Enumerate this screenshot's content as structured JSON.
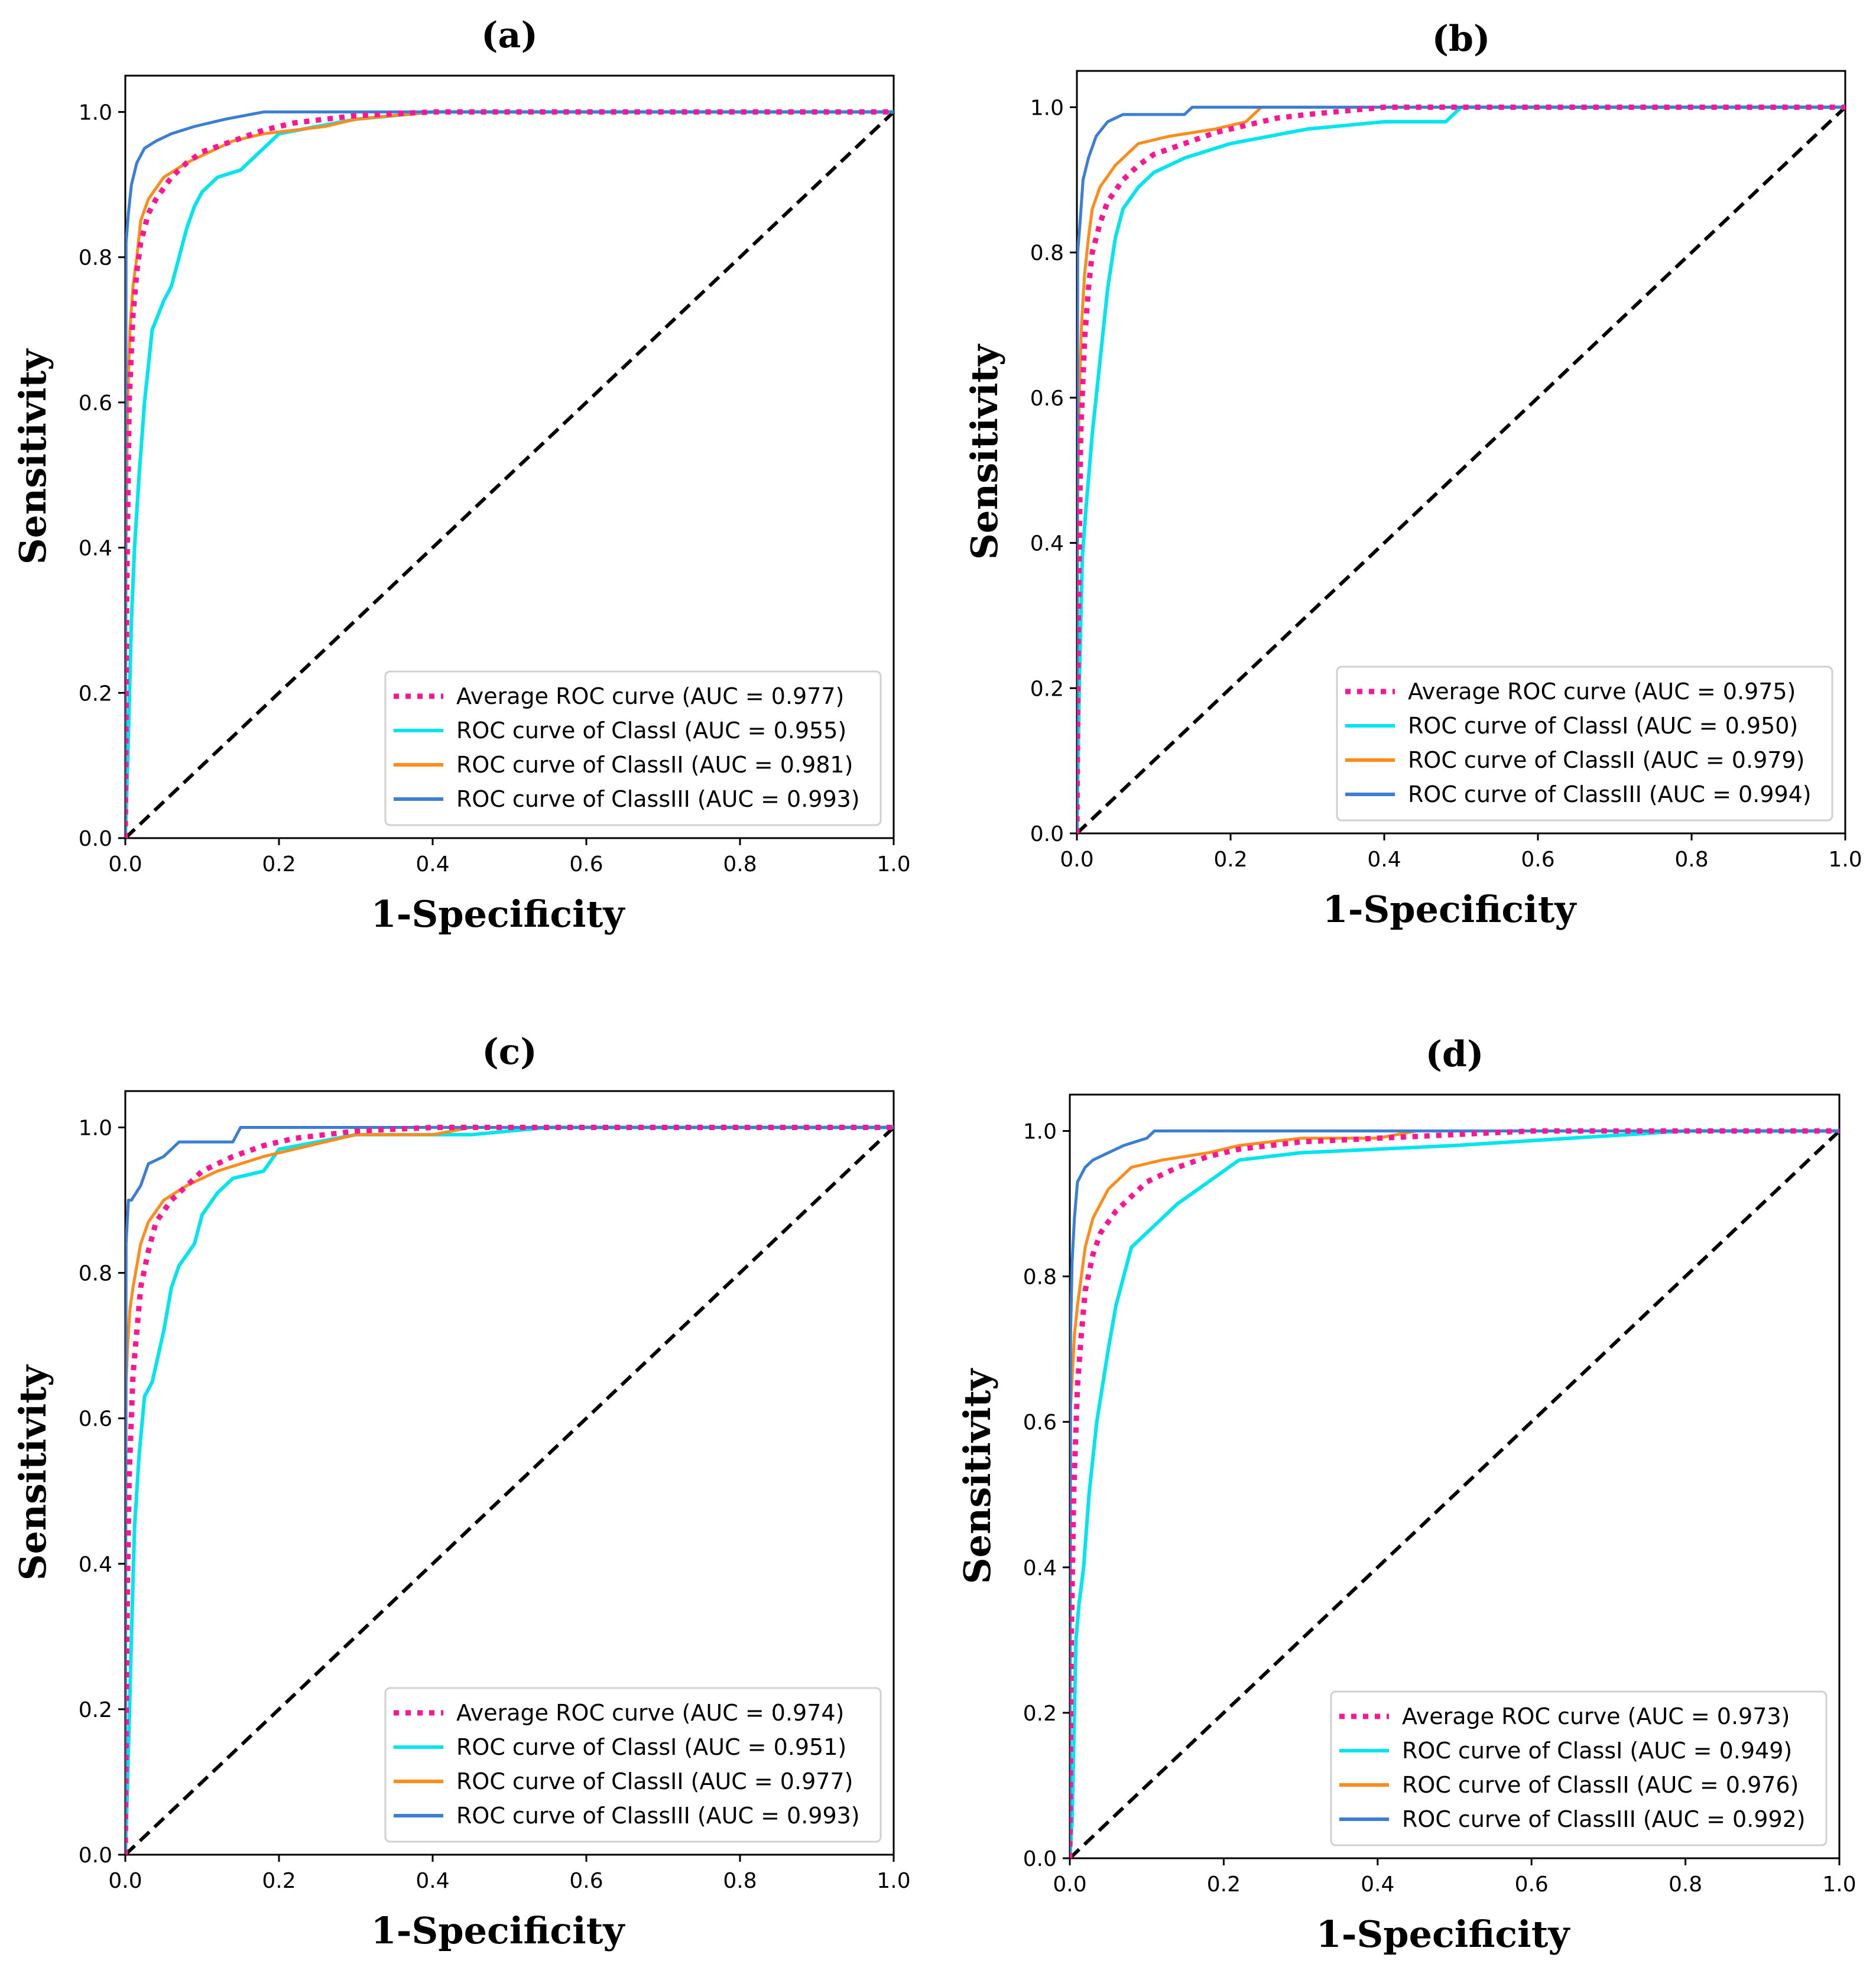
{
  "figure": {
    "panel_count": 4
  },
  "chart_data": [
    {
      "type": "line",
      "title": "(a)",
      "xlabel": "1-Specificity",
      "ylabel": "Sensitivity",
      "xlim": [
        0,
        1
      ],
      "ylim": [
        0,
        1.05
      ],
      "xticks": [
        "0.0",
        "0.2",
        "0.4",
        "0.6",
        "0.8",
        "1.0"
      ],
      "yticks": [
        "0.0",
        "0.2",
        "0.4",
        "0.6",
        "0.8",
        "1.0"
      ],
      "legend_position": "lower-right",
      "series": [
        {
          "name": "Average ROC curve (AUC = 0.977)",
          "color": "#ff1493",
          "style": "dotted",
          "x": [
            0,
            0.002,
            0.005,
            0.01,
            0.015,
            0.02,
            0.03,
            0.04,
            0.06,
            0.08,
            0.1,
            0.14,
            0.18,
            0.22,
            0.26,
            0.3,
            0.4,
            0.6,
            1.0
          ],
          "y": [
            0,
            0.35,
            0.6,
            0.72,
            0.78,
            0.82,
            0.86,
            0.88,
            0.91,
            0.93,
            0.945,
            0.96,
            0.975,
            0.985,
            0.99,
            0.995,
            1.0,
            1.0,
            1.0
          ]
        },
        {
          "name": "ROC curve of ClassI (AUC = 0.955)",
          "color": "#00e5ee",
          "style": "solid",
          "x": [
            0,
            0.003,
            0.008,
            0.012,
            0.018,
            0.025,
            0.035,
            0.05,
            0.06,
            0.07,
            0.08,
            0.09,
            0.1,
            0.12,
            0.15,
            0.18,
            0.2,
            0.25,
            0.3,
            0.4,
            1.0
          ],
          "y": [
            0,
            0.1,
            0.3,
            0.4,
            0.5,
            0.6,
            0.7,
            0.74,
            0.76,
            0.8,
            0.84,
            0.87,
            0.89,
            0.91,
            0.92,
            0.95,
            0.97,
            0.98,
            0.99,
            1.0,
            1.0
          ]
        },
        {
          "name": "ROC curve of ClassII (AUC = 0.981)",
          "color": "#ff8c1a",
          "style": "solid",
          "x": [
            0,
            0.001,
            0.003,
            0.006,
            0.01,
            0.015,
            0.02,
            0.03,
            0.05,
            0.08,
            0.1,
            0.14,
            0.18,
            0.26,
            0.3,
            0.4,
            1.0
          ],
          "y": [
            0,
            0.4,
            0.6,
            0.7,
            0.76,
            0.8,
            0.85,
            0.88,
            0.91,
            0.93,
            0.94,
            0.96,
            0.97,
            0.98,
            0.99,
            1.0,
            1.0
          ]
        },
        {
          "name": "ROC curve of ClassIII (AUC = 0.993)",
          "color": "#3a7fd5",
          "style": "solid",
          "x": [
            0,
            0.001,
            0.004,
            0.008,
            0.015,
            0.025,
            0.04,
            0.06,
            0.09,
            0.13,
            0.18,
            0.3,
            1.0
          ],
          "y": [
            0,
            0.82,
            0.86,
            0.9,
            0.93,
            0.95,
            0.96,
            0.97,
            0.98,
            0.99,
            1.0,
            1.0,
            1.0
          ]
        },
        {
          "name": "",
          "color": "#000000",
          "style": "dashed",
          "x": [
            0,
            1
          ],
          "y": [
            0,
            1
          ]
        }
      ]
    },
    {
      "type": "line",
      "title": "(b)",
      "xlabel": "1-Specificity",
      "ylabel": "Sensitivity",
      "xlim": [
        0,
        1
      ],
      "ylim": [
        0,
        1.05
      ],
      "xticks": [
        "0.0",
        "0.2",
        "0.4",
        "0.6",
        "0.8",
        "1.0"
      ],
      "yticks": [
        "0.0",
        "0.2",
        "0.4",
        "0.6",
        "0.8",
        "1.0"
      ],
      "legend_position": "lower-right",
      "series": [
        {
          "name": "Average ROC curve (AUC = 0.975)",
          "color": "#ff1493",
          "style": "dotted",
          "x": [
            0,
            0.002,
            0.005,
            0.01,
            0.015,
            0.02,
            0.03,
            0.04,
            0.06,
            0.08,
            0.1,
            0.14,
            0.18,
            0.22,
            0.26,
            0.3,
            0.4,
            1.0
          ],
          "y": [
            0,
            0.3,
            0.55,
            0.68,
            0.75,
            0.8,
            0.84,
            0.87,
            0.9,
            0.92,
            0.935,
            0.95,
            0.965,
            0.975,
            0.985,
            0.99,
            1.0,
            1.0
          ]
        },
        {
          "name": "ROC curve of ClassI (AUC = 0.950)",
          "color": "#00e5ee",
          "style": "solid",
          "x": [
            0,
            0.003,
            0.007,
            0.012,
            0.02,
            0.03,
            0.04,
            0.05,
            0.06,
            0.08,
            0.1,
            0.14,
            0.2,
            0.3,
            0.4,
            0.48,
            0.5,
            1.0
          ],
          "y": [
            0,
            0.2,
            0.38,
            0.45,
            0.55,
            0.65,
            0.75,
            0.82,
            0.86,
            0.89,
            0.91,
            0.93,
            0.95,
            0.97,
            0.98,
            0.98,
            1.0,
            1.0
          ]
        },
        {
          "name": "ROC curve of ClassII (AUC = 0.979)",
          "color": "#ff8c1a",
          "style": "solid",
          "x": [
            0,
            0.001,
            0.003,
            0.006,
            0.01,
            0.015,
            0.02,
            0.03,
            0.05,
            0.08,
            0.12,
            0.18,
            0.22,
            0.24,
            1.0
          ],
          "y": [
            0,
            0.45,
            0.6,
            0.7,
            0.77,
            0.82,
            0.86,
            0.89,
            0.92,
            0.95,
            0.96,
            0.97,
            0.98,
            1.0,
            1.0
          ]
        },
        {
          "name": "ROC curve of ClassIII (AUC = 0.994)",
          "color": "#3a7fd5",
          "style": "solid",
          "x": [
            0,
            0.001,
            0.004,
            0.008,
            0.015,
            0.025,
            0.04,
            0.06,
            0.1,
            0.14,
            0.15,
            1.0
          ],
          "y": [
            0,
            0.8,
            0.84,
            0.9,
            0.93,
            0.96,
            0.98,
            0.99,
            0.99,
            0.99,
            1.0,
            1.0
          ]
        },
        {
          "name": "",
          "color": "#000000",
          "style": "dashed",
          "x": [
            0,
            1
          ],
          "y": [
            0,
            1
          ]
        }
      ]
    },
    {
      "type": "line",
      "title": "(c)",
      "xlabel": "1-Specificity",
      "ylabel": "Sensitivity",
      "xlim": [
        0,
        1
      ],
      "ylim": [
        0,
        1.05
      ],
      "xticks": [
        "0.0",
        "0.2",
        "0.4",
        "0.6",
        "0.8",
        "1.0"
      ],
      "yticks": [
        "0.0",
        "0.2",
        "0.4",
        "0.6",
        "0.8",
        "1.0"
      ],
      "legend_position": "lower-right",
      "series": [
        {
          "name": "Average ROC curve (AUC = 0.974)",
          "color": "#ff1493",
          "style": "dotted",
          "x": [
            0,
            0.002,
            0.005,
            0.01,
            0.015,
            0.02,
            0.03,
            0.04,
            0.06,
            0.08,
            0.1,
            0.14,
            0.18,
            0.22,
            0.26,
            0.3,
            0.4,
            1.0
          ],
          "y": [
            0,
            0.3,
            0.52,
            0.66,
            0.72,
            0.78,
            0.83,
            0.87,
            0.9,
            0.92,
            0.94,
            0.96,
            0.975,
            0.985,
            0.99,
            0.995,
            1.0,
            1.0
          ]
        },
        {
          "name": "ROC curve of ClassI (AUC = 0.951)",
          "color": "#00e5ee",
          "style": "solid",
          "x": [
            0,
            0.003,
            0.008,
            0.012,
            0.018,
            0.025,
            0.035,
            0.05,
            0.06,
            0.07,
            0.09,
            0.1,
            0.12,
            0.14,
            0.18,
            0.2,
            0.25,
            0.3,
            0.45,
            0.55,
            1.0
          ],
          "y": [
            0,
            0.1,
            0.3,
            0.45,
            0.55,
            0.63,
            0.65,
            0.72,
            0.78,
            0.81,
            0.84,
            0.88,
            0.91,
            0.93,
            0.94,
            0.97,
            0.98,
            0.99,
            0.99,
            1.0,
            1.0
          ]
        },
        {
          "name": "ROC curve of ClassII (AUC = 0.977)",
          "color": "#ff8c1a",
          "style": "solid",
          "x": [
            0,
            0.001,
            0.003,
            0.006,
            0.01,
            0.015,
            0.02,
            0.03,
            0.05,
            0.08,
            0.12,
            0.18,
            0.22,
            0.3,
            0.4,
            0.45,
            1.0
          ],
          "y": [
            0,
            0.65,
            0.7,
            0.75,
            0.78,
            0.81,
            0.84,
            0.87,
            0.9,
            0.92,
            0.94,
            0.96,
            0.97,
            0.99,
            0.99,
            1.0,
            1.0
          ]
        },
        {
          "name": "ROC curve of ClassIII (AUC = 0.993)",
          "color": "#3a7fd5",
          "style": "solid",
          "x": [
            0,
            0.001,
            0.004,
            0.008,
            0.02,
            0.03,
            0.05,
            0.07,
            0.1,
            0.14,
            0.15,
            0.3,
            1.0
          ],
          "y": [
            0,
            0.84,
            0.9,
            0.9,
            0.92,
            0.95,
            0.96,
            0.98,
            0.98,
            0.98,
            1.0,
            1.0,
            1.0
          ]
        },
        {
          "name": "",
          "color": "#000000",
          "style": "dashed",
          "x": [
            0,
            1
          ],
          "y": [
            0,
            1
          ]
        }
      ]
    },
    {
      "type": "line",
      "title": "(d)",
      "xlabel": "1-Specificity",
      "ylabel": "Sensitivity",
      "xlim": [
        0,
        1
      ],
      "ylim": [
        0,
        1.05
      ],
      "xticks": [
        "0.0",
        "0.2",
        "0.4",
        "0.6",
        "0.8",
        "1.0"
      ],
      "yticks": [
        "0.0",
        "0.2",
        "0.4",
        "0.6",
        "0.8",
        "1.0"
      ],
      "legend_position": "lower-right",
      "series": [
        {
          "name": "Average ROC curve (AUC = 0.973)",
          "color": "#ff1493",
          "style": "dotted",
          "x": [
            0,
            0.002,
            0.005,
            0.01,
            0.015,
            0.02,
            0.03,
            0.04,
            0.06,
            0.08,
            0.1,
            0.14,
            0.18,
            0.22,
            0.3,
            0.4,
            0.6,
            1.0
          ],
          "y": [
            0,
            0.3,
            0.5,
            0.65,
            0.72,
            0.78,
            0.83,
            0.86,
            0.89,
            0.91,
            0.93,
            0.95,
            0.965,
            0.975,
            0.985,
            0.99,
            1.0,
            1.0
          ]
        },
        {
          "name": "ROC curve of ClassI (AUC = 0.949)",
          "color": "#00e5ee",
          "style": "solid",
          "x": [
            0,
            0.003,
            0.008,
            0.012,
            0.018,
            0.025,
            0.035,
            0.05,
            0.06,
            0.07,
            0.08,
            0.1,
            0.12,
            0.14,
            0.18,
            0.22,
            0.3,
            0.5,
            0.8,
            1.0
          ],
          "y": [
            0,
            0.05,
            0.3,
            0.35,
            0.4,
            0.5,
            0.6,
            0.7,
            0.76,
            0.8,
            0.84,
            0.86,
            0.88,
            0.9,
            0.93,
            0.96,
            0.97,
            0.98,
            1.0,
            1.0
          ]
        },
        {
          "name": "ROC curve of ClassII (AUC = 0.976)",
          "color": "#ff8c1a",
          "style": "solid",
          "x": [
            0,
            0.001,
            0.003,
            0.006,
            0.01,
            0.015,
            0.02,
            0.03,
            0.05,
            0.08,
            0.12,
            0.18,
            0.22,
            0.3,
            0.4,
            0.45,
            1.0
          ],
          "y": [
            0,
            0.62,
            0.66,
            0.72,
            0.76,
            0.8,
            0.84,
            0.88,
            0.92,
            0.95,
            0.96,
            0.97,
            0.98,
            0.99,
            0.99,
            1.0,
            1.0
          ]
        },
        {
          "name": "ROC curve of ClassIII (AUC = 0.992)",
          "color": "#3a7fd5",
          "style": "solid",
          "x": [
            0,
            0.001,
            0.003,
            0.006,
            0.01,
            0.02,
            0.03,
            0.05,
            0.07,
            0.1,
            0.11,
            0.3,
            1.0
          ],
          "y": [
            0,
            0.72,
            0.82,
            0.88,
            0.93,
            0.95,
            0.96,
            0.97,
            0.98,
            0.99,
            1.0,
            1.0,
            1.0
          ]
        },
        {
          "name": "",
          "color": "#000000",
          "style": "dashed",
          "x": [
            0,
            1
          ],
          "y": [
            0,
            1
          ]
        }
      ]
    }
  ]
}
